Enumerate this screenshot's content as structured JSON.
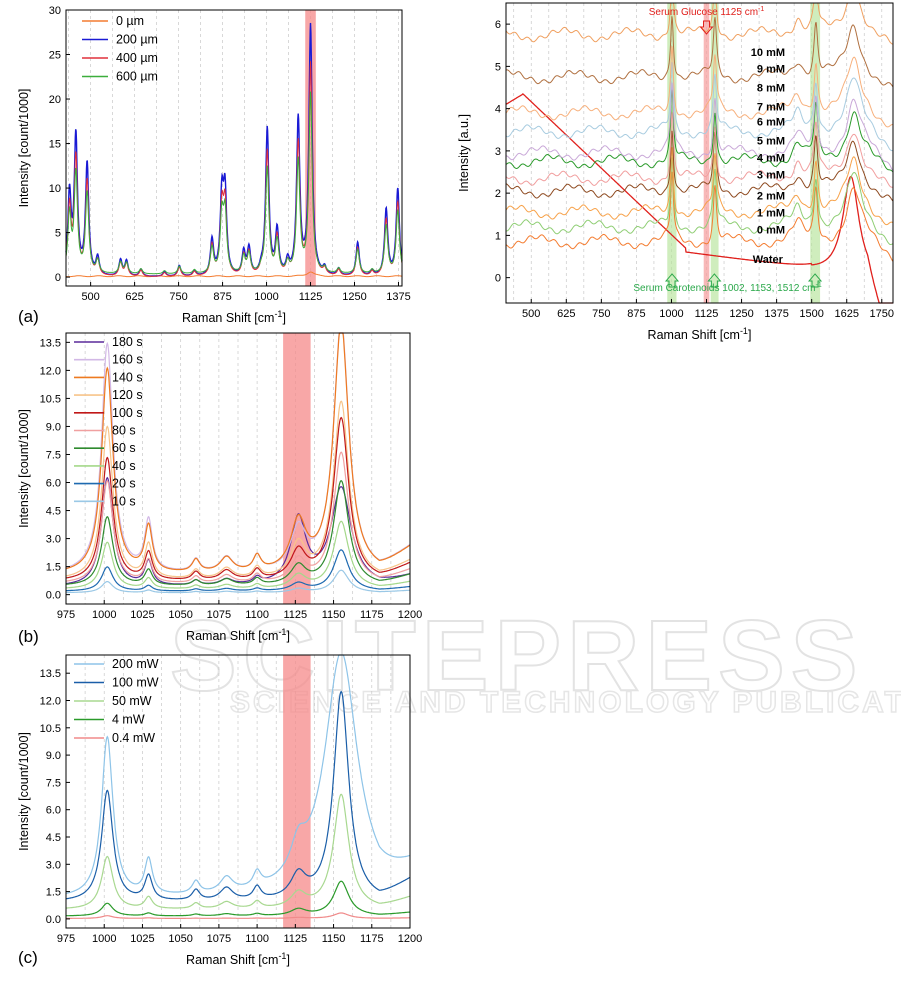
{
  "chart_data": [
    {
      "id": "a",
      "type": "line",
      "panel_label": "(a)",
      "xlabel": "Raman Shift [cm",
      "xlabel_sup": "-1",
      "xlabel_end": "]",
      "ylabel": "Intensity [count/1000]",
      "xlim": [
        430,
        1385
      ],
      "ylim": [
        -1,
        30
      ],
      "xticks": [
        500,
        625,
        750,
        875,
        1000,
        1125,
        1250,
        1375
      ],
      "yticks": [
        0,
        5,
        10,
        15,
        20,
        25,
        30
      ],
      "highlight": [
        1110,
        1140
      ],
      "legend_position": "top-left",
      "series": [
        {
          "name": "0 µm",
          "color": "#f47c30",
          "peaks": []
        },
        {
          "name": "200 µm",
          "color": "#1a1ad4",
          "peaks": [
            [
              440,
              14
            ],
            [
              465,
              16
            ],
            [
              490,
              12.5
            ],
            [
              1002,
              16.5
            ],
            [
              1030,
              5
            ],
            [
              1060,
              1.8
            ],
            [
              1090,
              1.8
            ],
            [
              1155,
              0.8
            ],
            [
              1195,
              0.7
            ],
            [
              1270,
              1.4
            ],
            [
              1310,
              4.2
            ],
            [
              1340,
              8.5
            ],
            [
              1373,
              9.7
            ],
            [
              1100,
              0.3
            ],
            [
              1110,
              17.5
            ],
            [
              1125,
              28
            ],
            [
              1150,
              2.5
            ]
          ]
        },
        {
          "name": "400 µm",
          "color": "#e0303c",
          "peaks": []
        },
        {
          "name": "600 µm",
          "color": "#3cae3c",
          "peaks": []
        }
      ],
      "series_scale": [
        0.03,
        1.0,
        0.85,
        0.72
      ],
      "peaks": [
        [
          440,
          9
        ],
        [
          458,
          15.5
        ],
        [
          490,
          12.5
        ],
        [
          520,
          2
        ],
        [
          585,
          1.8
        ],
        [
          602,
          1.7
        ],
        [
          643,
          0.8
        ],
        [
          710,
          0.5
        ],
        [
          752,
          1.2
        ],
        [
          795,
          0.6
        ],
        [
          845,
          4
        ],
        [
          873,
          8.6
        ],
        [
          882,
          9
        ],
        [
          935,
          2.6
        ],
        [
          950,
          3
        ],
        [
          985,
          0.6
        ],
        [
          1002,
          16.5
        ],
        [
          1030,
          5
        ],
        [
          1060,
          1.5
        ],
        [
          1090,
          17.5
        ],
        [
          1125,
          28
        ],
        [
          1165,
          0.8
        ],
        [
          1205,
          0.8
        ],
        [
          1259,
          3.8
        ],
        [
          1300,
          0.6
        ],
        [
          1340,
          7.5
        ],
        [
          1373,
          9.8
        ]
      ]
    },
    {
      "id": "right",
      "type": "line",
      "panel_label": "",
      "xlabel": "Raman Shift [cm",
      "xlabel_sup": "-1",
      "xlabel_end": "]",
      "ylabel": "Intensity [a.u.]",
      "xlim": [
        410,
        1790
      ],
      "ylim": [
        -0.6,
        6.5
      ],
      "xticks": [
        500,
        625,
        750,
        875,
        1000,
        1125,
        1250,
        1375,
        1500,
        1625,
        1750
      ],
      "yticks": [
        0,
        1,
        2,
        3,
        4,
        5,
        6
      ],
      "green_bands": [
        [
          985,
          1018
        ],
        [
          1140,
          1168
        ],
        [
          1495,
          1530
        ]
      ],
      "red_band": [
        1115,
        1135
      ],
      "annotation_top": "Serum Glucose 1125 cm",
      "annotation_top_sup": "-1",
      "annotation_bottom": "Serum Carotenoids 1002, 1153, 1512 cm",
      "annotation_bottom_sup": "-1",
      "series": [
        {
          "name": "Water",
          "color": "#e0201c"
        },
        {
          "name": "0 mM",
          "color": "#f47c30",
          "offset": 0.85
        },
        {
          "name": "1 mM",
          "color": "#8fce74",
          "offset": 1.2
        },
        {
          "name": "2 mM",
          "color": "#f7a24a",
          "offset": 1.55
        },
        {
          "name": "3 mM",
          "color": "#8e4a20",
          "offset": 2.05
        },
        {
          "name": "4 mM",
          "color": "#f19e9e",
          "offset": 2.35
        },
        {
          "name": "5 mM",
          "color": "#2a9a2a",
          "offset": 2.75
        },
        {
          "name": "6 mM",
          "color": "#c9a8d8",
          "offset": 2.95
        },
        {
          "name": "7 mM",
          "color": "#a8cce0",
          "offset": 3.45
        },
        {
          "name": "8 mM",
          "color": "#f7b07c",
          "offset": 3.9
        },
        {
          "name": "9 mM",
          "color": "#b07040",
          "offset": 4.75
        },
        {
          "name": "10 mM",
          "color": "#f0a060",
          "offset": 5.75
        }
      ]
    },
    {
      "id": "b",
      "type": "line",
      "panel_label": "(b)",
      "xlabel": "Raman Shift [cm",
      "xlabel_sup": "-1",
      "xlabel_end": "]",
      "ylabel": "Intensity [count/1000]",
      "xlim": [
        975,
        1200
      ],
      "ylim": [
        -0.5,
        14
      ],
      "xticks": [
        975,
        1000,
        1025,
        1050,
        1075,
        1100,
        1125,
        1150,
        1175,
        1200
      ],
      "yticks": [
        0.0,
        1.5,
        3.0,
        4.5,
        6.0,
        7.5,
        9.0,
        10.5,
        12.0,
        13.5
      ],
      "ytick_labels": [
        "0.0",
        "1.5",
        "3.0",
        "4.5",
        "6.0",
        "7.5",
        "9.0",
        "10.5",
        "12.0",
        "13.5"
      ],
      "highlight": [
        1117,
        1135
      ],
      "legend_position": "top-left",
      "series": [
        {
          "name": "180 s",
          "color": "#5a2a9a"
        },
        {
          "name": "160 s",
          "color": "#d2b8e6"
        },
        {
          "name": "140 s",
          "color": "#ee7a20"
        },
        {
          "name": "120 s",
          "color": "#f7c48a"
        },
        {
          "name": "100 s",
          "color": "#c01818"
        },
        {
          "name": "80 s",
          "color": "#f0a0a0"
        },
        {
          "name": "60 s",
          "color": "#2e8a2e"
        },
        {
          "name": "40 s",
          "color": "#a4d88a"
        },
        {
          "name": "20 s",
          "color": "#1e6ab0"
        },
        {
          "name": "10 s",
          "color": "#9ac8e6"
        }
      ],
      "peak1002": [
        5.8,
        12.3,
        11.0,
        8.2,
        6.6,
        5.5,
        3.7,
        2.5,
        1.3,
        0.6
      ],
      "peak1153": [
        5.2,
        13.5,
        13.3,
        9.5,
        8.7,
        7.0,
        5.6,
        3.6,
        2.2,
        1.2
      ],
      "peak1125": [
        3.5,
        2.2,
        2.6,
        1.8,
        1.5,
        1.2,
        1.0,
        0.7,
        0.4,
        0.2
      ]
    },
    {
      "id": "c",
      "type": "line",
      "panel_label": "(c)",
      "xlabel": "Raman Shift [cm",
      "xlabel_sup": "-1",
      "xlabel_end": "]",
      "ylabel": "Intensity [count/1000]",
      "xlim": [
        975,
        1200
      ],
      "ylim": [
        -0.5,
        14.5
      ],
      "xticks": [
        975,
        1000,
        1025,
        1050,
        1075,
        1100,
        1125,
        1150,
        1175,
        1200
      ],
      "yticks": [
        0.0,
        1.5,
        3.0,
        4.5,
        6.0,
        7.5,
        9.0,
        10.5,
        12.0,
        13.5
      ],
      "ytick_labels": [
        "0.0",
        "1.5",
        "3.0",
        "4.5",
        "6.0",
        "7.5",
        "9.0",
        "10.5",
        "12.0",
        "13.5"
      ],
      "highlight": [
        1117,
        1135
      ],
      "legend_position": "top-left",
      "series": [
        {
          "name": "200 mW",
          "color": "#8ec4e8"
        },
        {
          "name": "100 mW",
          "color": "#1a5ea8"
        },
        {
          "name": "50 mW",
          "color": "#a8d890"
        },
        {
          "name": "4 mW",
          "color": "#2a9a2a"
        },
        {
          "name": "0.4 mW",
          "color": "#f08a8a"
        }
      ],
      "peak1002": [
        8.8,
        6.1,
        2.9,
        0.7,
        0.15
      ],
      "peak1153": [
        13.5,
        11.5,
        6.3,
        1.9,
        0.3
      ],
      "peak1125": [
        1.6,
        1.3,
        0.8,
        0.35,
        0.05
      ]
    }
  ],
  "watermark": {
    "main": "SCITEPRESS",
    "sub": "SCIENCE AND TECHNOLOGY PUBLICATIONS"
  }
}
